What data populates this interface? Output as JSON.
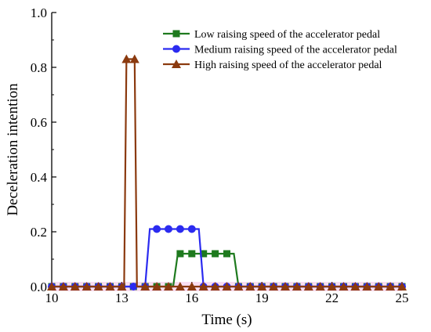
{
  "chart_data": {
    "type": "line",
    "xlabel": "Time (s)",
    "ylabel": "Deceleration intention",
    "xlim": [
      10,
      25
    ],
    "ylim": [
      0,
      1.0
    ],
    "xticks": [
      "10",
      "13",
      "16",
      "19",
      "22",
      "25"
    ],
    "yticks": [
      "0.0",
      "0.2",
      "0.4",
      "0.6",
      "0.8",
      "1.0"
    ],
    "grid": false,
    "legend_position": "top-right",
    "series": [
      {
        "name": "Low raising speed of the accelerator pedal",
        "color": "#1e7a1e",
        "marker": "square",
        "x": [
          10,
          15.2,
          15.4,
          17.8,
          18.0,
          25
        ],
        "y": [
          0,
          0,
          0.12,
          0.12,
          0,
          0
        ],
        "markers_x": [
          10,
          10.5,
          11,
          11.5,
          12,
          12.5,
          13,
          13.5,
          14,
          14.5,
          15,
          15.5,
          16,
          16.5,
          17,
          17.5,
          18,
          18.5,
          19,
          19.5,
          20,
          20.5,
          21,
          21.5,
          22,
          22.5,
          23,
          23.5,
          24,
          24.5,
          25
        ],
        "markers_y": [
          0,
          0,
          0,
          0,
          0,
          0,
          0,
          0,
          0,
          0,
          0,
          0.12,
          0.12,
          0.12,
          0.12,
          0.12,
          0,
          0,
          0,
          0,
          0,
          0,
          0,
          0,
          0,
          0,
          0,
          0,
          0,
          0,
          0
        ]
      },
      {
        "name": "Medium raising speed of the accelerator pedal",
        "color": "#2b2bf0",
        "marker": "circle",
        "x": [
          10,
          14.0,
          14.2,
          16.3,
          16.5,
          25
        ],
        "y": [
          0,
          0,
          0.21,
          0.21,
          0,
          0
        ],
        "markers_x": [
          10,
          10.5,
          11,
          11.5,
          12,
          12.5,
          13,
          13.5,
          14,
          14.5,
          15,
          15.5,
          16,
          16.5,
          17,
          17.5,
          18,
          18.5,
          19,
          19.5,
          20,
          20.5,
          21,
          21.5,
          22,
          22.5,
          23,
          23.5,
          24,
          24.5,
          25
        ],
        "markers_y": [
          0,
          0,
          0,
          0,
          0,
          0,
          0,
          0,
          0,
          0.21,
          0.21,
          0.21,
          0.21,
          0,
          0,
          0,
          0,
          0,
          0,
          0,
          0,
          0,
          0,
          0,
          0,
          0,
          0,
          0,
          0,
          0,
          0
        ]
      },
      {
        "name": "High raising speed of the accelerator pedal",
        "color": "#8b3a0f",
        "marker": "triangle",
        "x": [
          10,
          13.1,
          13.2,
          13.55,
          13.65,
          25
        ],
        "y": [
          0,
          0,
          0.83,
          0.83,
          0,
          0
        ],
        "markers_x": [
          10,
          10.5,
          11,
          11.5,
          12,
          12.5,
          13,
          13.2,
          13.55,
          14,
          14.5,
          15,
          15.5,
          16,
          16.5,
          17,
          17.5,
          18,
          18.5,
          19,
          19.5,
          20,
          20.5,
          21,
          21.5,
          22,
          22.5,
          23,
          23.5,
          24,
          24.5,
          25
        ],
        "markers_y": [
          0,
          0,
          0,
          0,
          0,
          0,
          0,
          0.83,
          0.83,
          0,
          0,
          0,
          0,
          0,
          0,
          0,
          0,
          0,
          0,
          0,
          0,
          0,
          0,
          0,
          0,
          0,
          0,
          0,
          0,
          0,
          0,
          0
        ]
      }
    ]
  }
}
